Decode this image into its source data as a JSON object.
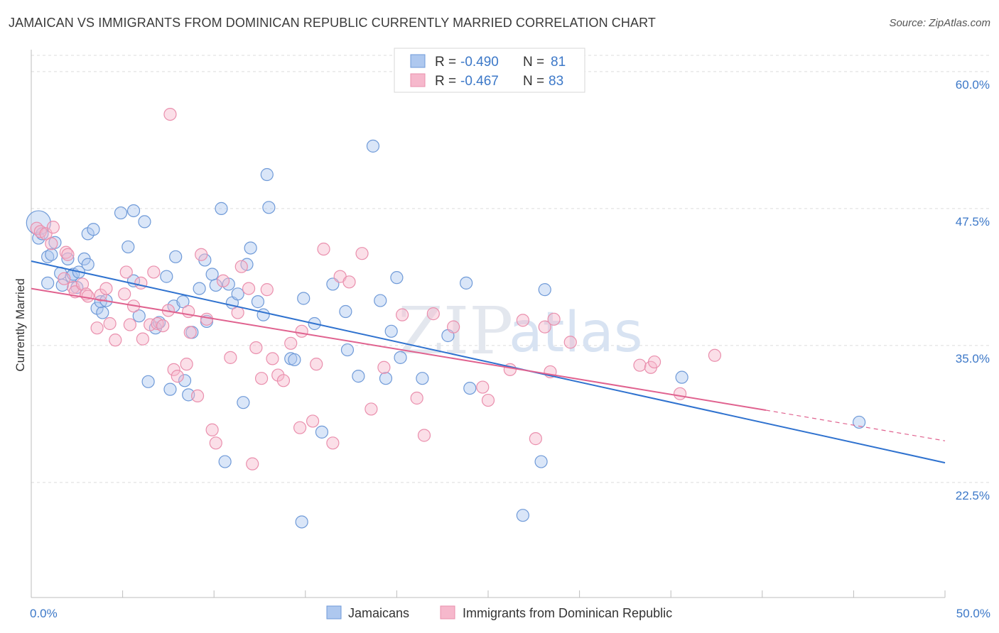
{
  "header": {
    "title": "JAMAICAN VS IMMIGRANTS FROM DOMINICAN REPUBLIC CURRENTLY MARRIED CORRELATION CHART",
    "source": "Source: ZipAtlas.com"
  },
  "watermark": {
    "zip": "ZIP",
    "atlas": "atlas"
  },
  "legend_box": {
    "r_label": "R =",
    "n_label": "N =",
    "rows": [
      {
        "r": "-0.490",
        "n": "81",
        "color": "#aec8ef"
      },
      {
        "r": "-0.467",
        "n": "83",
        "color": "#f6b8cc"
      }
    ]
  },
  "colors": {
    "blue_fill": "#aec8ef",
    "blue_stroke": "#6f9ad8",
    "blue_line": "#2f72cf",
    "pink_fill": "#f6b8cc",
    "pink_stroke": "#ea8fad",
    "pink_line": "#e0628f",
    "grid": "#dcdcdc",
    "tick_text": "#3c78c8"
  },
  "chart_data": {
    "type": "scatter",
    "title": "JAMAICAN VS IMMIGRANTS FROM DOMINICAN REPUBLIC CURRENTLY MARRIED CORRELATION CHART",
    "xlabel": "",
    "ylabel": "Currently Married",
    "xlim": [
      0,
      50
    ],
    "ylim": [
      12.0,
      62.0
    ],
    "x_tick_labels": [
      {
        "value": 0,
        "label": "0.0%"
      },
      {
        "value": 50,
        "label": "50.0%"
      }
    ],
    "y_ticks": [
      {
        "value": 22.5,
        "label": "22.5%"
      },
      {
        "value": 35.0,
        "label": "35.0%"
      },
      {
        "value": 47.5,
        "label": "47.5%"
      },
      {
        "value": 60.0,
        "label": "60.0%"
      }
    ],
    "grid": "horizontal dashed",
    "legend_position": "bottom",
    "series": [
      {
        "name": "Jamaicans",
        "color": "#aec8ef",
        "trend": {
          "x0": 0,
          "y0": 42.7,
          "x1": 50,
          "y1": 24.3
        },
        "points": [
          [
            0.4,
            46.2
          ],
          [
            0.4,
            44.8
          ],
          [
            0.6,
            45.2
          ],
          [
            0.9,
            43.1
          ],
          [
            1.1,
            43.3
          ],
          [
            1.3,
            44.4
          ],
          [
            0.9,
            40.7
          ],
          [
            1.6,
            41.6
          ],
          [
            1.7,
            40.5
          ],
          [
            2.0,
            42.9
          ],
          [
            2.2,
            41.3
          ],
          [
            2.3,
            41.5
          ],
          [
            2.6,
            41.7
          ],
          [
            2.5,
            40.3
          ],
          [
            2.9,
            42.9
          ],
          [
            3.1,
            42.4
          ],
          [
            3.1,
            45.2
          ],
          [
            3.4,
            45.6
          ],
          [
            3.6,
            38.4
          ],
          [
            3.9,
            38.0
          ],
          [
            3.8,
            39.0
          ],
          [
            4.1,
            39.1
          ],
          [
            4.9,
            47.1
          ],
          [
            5.3,
            44.0
          ],
          [
            5.6,
            40.9
          ],
          [
            5.6,
            47.3
          ],
          [
            5.9,
            37.7
          ],
          [
            6.2,
            46.3
          ],
          [
            6.4,
            31.7
          ],
          [
            6.8,
            36.6
          ],
          [
            7.0,
            37.1
          ],
          [
            7.4,
            41.3
          ],
          [
            7.6,
            31.0
          ],
          [
            7.8,
            38.6
          ],
          [
            7.9,
            43.1
          ],
          [
            8.3,
            39.0
          ],
          [
            8.4,
            31.8
          ],
          [
            8.6,
            30.5
          ],
          [
            8.8,
            36.2
          ],
          [
            9.2,
            40.2
          ],
          [
            9.5,
            42.8
          ],
          [
            9.6,
            37.2
          ],
          [
            9.9,
            41.5
          ],
          [
            10.1,
            40.5
          ],
          [
            10.4,
            47.5
          ],
          [
            10.6,
            24.4
          ],
          [
            10.8,
            40.6
          ],
          [
            11.0,
            38.9
          ],
          [
            11.3,
            39.7
          ],
          [
            11.6,
            29.8
          ],
          [
            11.8,
            42.4
          ],
          [
            12.0,
            43.9
          ],
          [
            12.4,
            39.0
          ],
          [
            12.7,
            37.8
          ],
          [
            12.9,
            50.6
          ],
          [
            13.0,
            47.6
          ],
          [
            14.2,
            33.8
          ],
          [
            14.4,
            33.7
          ],
          [
            14.8,
            18.9
          ],
          [
            14.9,
            39.3
          ],
          [
            15.5,
            37.0
          ],
          [
            15.9,
            27.1
          ],
          [
            16.5,
            40.6
          ],
          [
            17.2,
            38.1
          ],
          [
            17.3,
            34.6
          ],
          [
            17.9,
            32.2
          ],
          [
            18.7,
            53.2
          ],
          [
            19.4,
            32.0
          ],
          [
            19.1,
            39.1
          ],
          [
            19.7,
            36.3
          ],
          [
            20.0,
            41.2
          ],
          [
            20.2,
            33.9
          ],
          [
            21.4,
            32.0
          ],
          [
            22.8,
            35.9
          ],
          [
            24.0,
            31.1
          ],
          [
            23.8,
            40.7
          ],
          [
            26.9,
            19.5
          ],
          [
            27.9,
            24.4
          ],
          [
            28.1,
            40.1
          ],
          [
            35.6,
            32.1
          ],
          [
            45.3,
            28.0
          ]
        ]
      },
      {
        "name": "Immigrants from Dominican Republic",
        "color": "#f6b8cc",
        "trend": {
          "x0": 0,
          "y0": 40.2,
          "x1": 40.2,
          "y1": 29.1,
          "dash_to_x": 50,
          "dash_to_y": 26.3
        },
        "points": [
          [
            0.3,
            45.7
          ],
          [
            0.5,
            45.4
          ],
          [
            0.8,
            45.2
          ],
          [
            1.1,
            44.3
          ],
          [
            1.2,
            45.8
          ],
          [
            1.8,
            41.1
          ],
          [
            1.9,
            43.5
          ],
          [
            2.0,
            43.3
          ],
          [
            2.3,
            40.3
          ],
          [
            2.4,
            39.9
          ],
          [
            2.8,
            40.6
          ],
          [
            3.0,
            39.7
          ],
          [
            3.1,
            39.5
          ],
          [
            3.6,
            36.6
          ],
          [
            3.8,
            39.6
          ],
          [
            4.1,
            40.2
          ],
          [
            4.3,
            37.0
          ],
          [
            4.6,
            35.5
          ],
          [
            5.1,
            39.7
          ],
          [
            5.2,
            41.7
          ],
          [
            5.4,
            36.9
          ],
          [
            5.6,
            38.6
          ],
          [
            6.0,
            40.7
          ],
          [
            6.1,
            35.6
          ],
          [
            6.5,
            36.9
          ],
          [
            6.7,
            41.7
          ],
          [
            6.9,
            37.0
          ],
          [
            7.2,
            36.8
          ],
          [
            7.5,
            38.2
          ],
          [
            7.6,
            56.1
          ],
          [
            7.8,
            32.8
          ],
          [
            8.0,
            32.2
          ],
          [
            8.5,
            33.3
          ],
          [
            8.6,
            38.1
          ],
          [
            8.7,
            36.2
          ],
          [
            9.1,
            30.4
          ],
          [
            9.3,
            43.3
          ],
          [
            9.6,
            37.4
          ],
          [
            9.9,
            27.3
          ],
          [
            10.1,
            26.1
          ],
          [
            10.5,
            40.9
          ],
          [
            10.9,
            33.9
          ],
          [
            11.3,
            38.0
          ],
          [
            11.5,
            42.2
          ],
          [
            11.9,
            40.2
          ],
          [
            12.1,
            24.2
          ],
          [
            12.3,
            34.8
          ],
          [
            12.6,
            32.0
          ],
          [
            12.9,
            40.1
          ],
          [
            13.2,
            33.8
          ],
          [
            13.5,
            32.3
          ],
          [
            13.8,
            31.8
          ],
          [
            14.2,
            35.2
          ],
          [
            14.7,
            27.5
          ],
          [
            14.8,
            36.3
          ],
          [
            15.4,
            28.1
          ],
          [
            15.6,
            33.3
          ],
          [
            16.0,
            43.8
          ],
          [
            16.5,
            26.1
          ],
          [
            16.9,
            41.3
          ],
          [
            17.4,
            40.8
          ],
          [
            18.1,
            43.4
          ],
          [
            18.6,
            29.2
          ],
          [
            19.3,
            33.0
          ],
          [
            20.3,
            37.8
          ],
          [
            21.1,
            30.2
          ],
          [
            21.5,
            26.8
          ],
          [
            22.0,
            37.9
          ],
          [
            23.1,
            36.7
          ],
          [
            24.7,
            31.2
          ],
          [
            25.0,
            30.0
          ],
          [
            26.2,
            32.8
          ],
          [
            26.9,
            37.3
          ],
          [
            27.6,
            26.5
          ],
          [
            28.1,
            36.7
          ],
          [
            28.4,
            32.6
          ],
          [
            28.6,
            37.4
          ],
          [
            29.5,
            35.3
          ],
          [
            33.3,
            33.2
          ],
          [
            33.9,
            33.0
          ],
          [
            34.1,
            33.5
          ],
          [
            35.5,
            30.6
          ],
          [
            37.4,
            34.1
          ]
        ]
      }
    ]
  }
}
